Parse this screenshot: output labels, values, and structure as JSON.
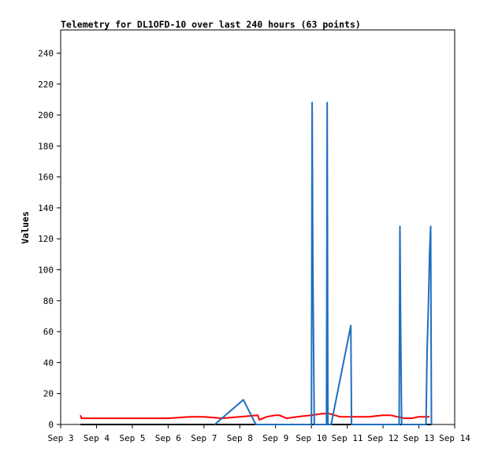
{
  "chart_data": {
    "type": "line",
    "title": "Telemetry for DL1OFD-10 over last 240 hours (63 points)",
    "ylabel": "Values",
    "xlabel": "",
    "xlim": [
      3.0,
      14.0
    ],
    "ylim": [
      0,
      255
    ],
    "x_ticks": [
      {
        "label": "Sep 3",
        "x": 3
      },
      {
        "label": "Sep 4",
        "x": 4
      },
      {
        "label": "Sep 5",
        "x": 5
      },
      {
        "label": "Sep 6",
        "x": 6
      },
      {
        "label": "Sep 7",
        "x": 7
      },
      {
        "label": "Sep 8",
        "x": 8
      },
      {
        "label": "Sep 9",
        "x": 9
      },
      {
        "label": "Sep 10",
        "x": 10
      },
      {
        "label": "Sep 11",
        "x": 11
      },
      {
        "label": "Sep 12",
        "x": 12
      },
      {
        "label": "Sep 13",
        "x": 13
      },
      {
        "label": "Sep 14",
        "x": 14
      }
    ],
    "y_ticks": [
      0,
      20,
      40,
      60,
      80,
      100,
      120,
      140,
      160,
      180,
      200,
      220,
      240
    ],
    "grid": false,
    "series": [
      {
        "color": "#000000",
        "x": [
          3.55,
          13.35
        ],
        "y": [
          0,
          0
        ]
      },
      {
        "color": "#ff0000",
        "x": [
          3.55,
          3.58,
          4.5,
          5.5,
          6.0,
          6.6,
          7.0,
          7.5,
          8.0,
          8.5,
          8.55,
          8.75,
          9.0,
          9.1,
          9.3,
          9.6,
          10.0,
          10.3,
          10.5,
          10.8,
          11.0,
          11.3,
          11.6,
          12.0,
          12.2,
          12.4,
          12.6,
          12.8,
          13.0,
          13.3
        ],
        "y": [
          6,
          4,
          4,
          4,
          4,
          5,
          5,
          4,
          5,
          6,
          3,
          5,
          6,
          6,
          4,
          5,
          6,
          7,
          7,
          5,
          5,
          5,
          5,
          6,
          6,
          5,
          4,
          4,
          5,
          5
        ]
      },
      {
        "color": "#1f6fbf",
        "x": [
          7.3,
          8.1,
          8.45,
          10.0,
          10.02,
          10.04,
          10.08,
          10.42,
          10.44,
          10.46,
          10.55,
          11.1,
          11.12,
          12.45,
          12.47,
          12.49,
          12.52,
          13.2,
          13.23,
          13.27,
          13.3,
          13.33,
          13.35
        ],
        "y": [
          0,
          16,
          0,
          0,
          208,
          104,
          0,
          0,
          208,
          0,
          0,
          64,
          0,
          0,
          128,
          64,
          0,
          0,
          48,
          80,
          112,
          128,
          0
        ]
      }
    ]
  }
}
